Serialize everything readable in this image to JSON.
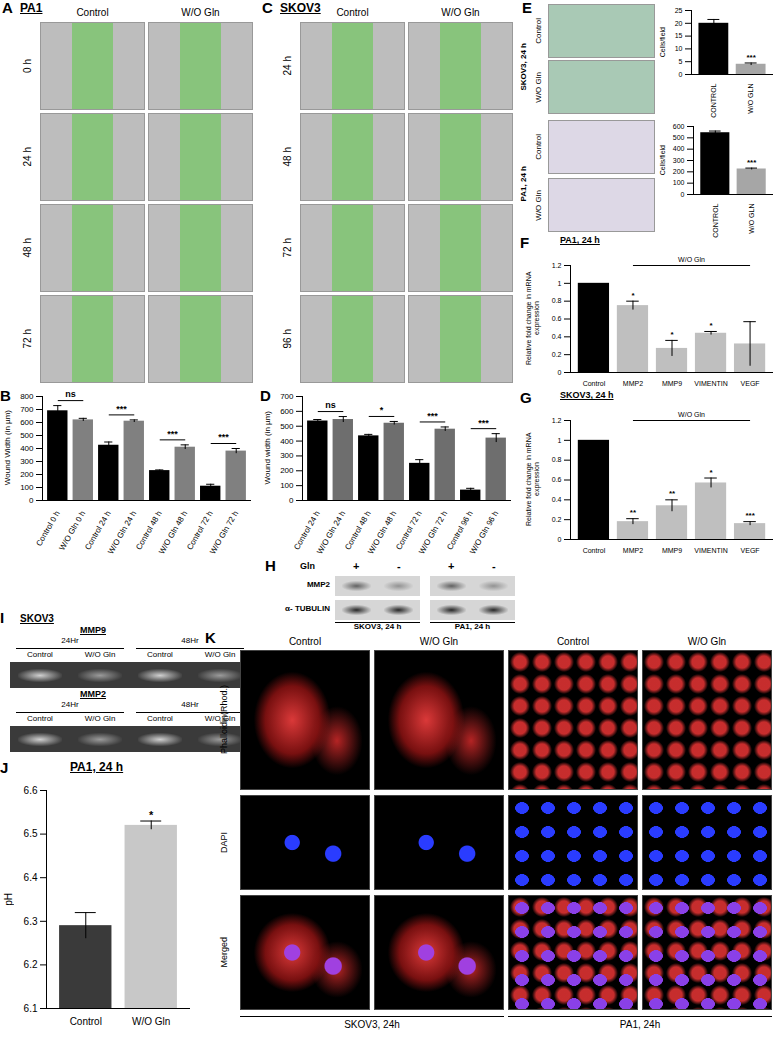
{
  "chart_data": [
    {
      "panel": "B",
      "type": "bar",
      "ylabel": "Wound Width (in µm)",
      "categories": [
        "Control 0 h",
        "W/O Gln 0 h",
        "Control 24 h",
        "W/O Gln 24 h",
        "Control 48 h",
        "W/O Gln 48 h",
        "Control 72 h",
        "W/O Gln 72 h"
      ],
      "values": [
        690,
        620,
        425,
        610,
        230,
        410,
        110,
        380
      ],
      "errors": [
        40,
        12,
        25,
        10,
        5,
        18,
        15,
        20
      ],
      "colors": [
        "#000000",
        "#808080",
        "#000000",
        "#808080",
        "#000000",
        "#808080",
        "#000000",
        "#808080"
      ],
      "ylim": [
        0,
        800
      ],
      "yticks": [
        0,
        100,
        200,
        300,
        400,
        500,
        600,
        700,
        800
      ],
      "annotations": [
        {
          "text": "ns",
          "categories": [
            "Control 0 h",
            "W/O Gln 0 h"
          ]
        },
        {
          "text": "***",
          "categories": [
            "Control 24 h",
            "W/O Gln 24 h"
          ]
        },
        {
          "text": "***",
          "categories": [
            "Control 48 h",
            "W/O Gln 48 h"
          ]
        },
        {
          "text": "***",
          "categories": [
            "Control 72 h",
            "W/O Gln 72 h"
          ]
        }
      ]
    },
    {
      "panel": "D",
      "type": "bar",
      "ylabel": "Wound width (in µm)",
      "categories": [
        "Control 24 h",
        "W/O Gln 24 h",
        "Control 48 h",
        "W/O Gln 48 h",
        "Control 72 h",
        "W/O Gln 72 h",
        "Control 96 h",
        "W/O Gln 96 h"
      ],
      "values": [
        535,
        545,
        435,
        520,
        250,
        480,
        70,
        420
      ],
      "errors": [
        10,
        20,
        10,
        12,
        25,
        15,
        12,
        30
      ],
      "colors": [
        "#000000",
        "#6e6e6e",
        "#000000",
        "#6e6e6e",
        "#000000",
        "#6e6e6e",
        "#000000",
        "#6e6e6e"
      ],
      "ylim": [
        0,
        700
      ],
      "yticks": [
        0,
        100,
        200,
        300,
        400,
        500,
        600,
        700
      ],
      "annotations": [
        {
          "text": "ns",
          "categories": [
            "Control 24 h",
            "W/O Gln 24 h"
          ]
        },
        {
          "text": "*",
          "categories": [
            "Control 48 h",
            "W/O Gln 48 h"
          ]
        },
        {
          "text": "***",
          "categories": [
            "Control 72 h",
            "W/O Gln 72 h"
          ]
        },
        {
          "text": "***",
          "categories": [
            "Control 96 h",
            "W/O Gln 96 h"
          ]
        }
      ]
    },
    {
      "type": "bar",
      "ylabel": "Cells/field",
      "categories": [
        "CONTROL",
        "W/O GLN"
      ],
      "values": [
        20,
        4
      ],
      "errors": [
        1.5,
        0.5
      ],
      "colors": [
        "#000000",
        "#a6a6a6"
      ],
      "ylim": [
        0,
        25
      ],
      "yticks": [
        0,
        5,
        10,
        15,
        20,
        25
      ],
      "annotations": [
        {
          "text": "***",
          "categories": [
            "W/O GLN"
          ]
        }
      ]
    },
    {
      "type": "bar",
      "ylabel": "Cells/field",
      "categories": [
        "CONTROL",
        "W/O GLN"
      ],
      "values": [
        545,
        225
      ],
      "errors": [
        15,
        8
      ],
      "colors": [
        "#000000",
        "#a6a6a6"
      ],
      "ylim": [
        0,
        600
      ],
      "yticks": [
        0,
        100,
        200,
        300,
        400,
        500,
        600
      ],
      "annotations": [
        {
          "text": "***",
          "categories": [
            "W/O GLN"
          ]
        }
      ]
    },
    {
      "panel": "F",
      "type": "bar",
      "title": "PA1, 24 h",
      "subtitle": "W/O Gln",
      "ylabel": "Relative fold change in mRNA expression",
      "categories": [
        "Control",
        "MMP2",
        "MMP9",
        "VIMENTIN",
        "VEGF"
      ],
      "values": [
        1,
        0.75,
        0.27,
        0.44,
        0.32
      ],
      "errors": [
        0,
        0.05,
        0.09,
        0.02,
        0.25
      ],
      "colors": [
        "#000000",
        "#bfbfbf",
        "#bfbfbf",
        "#bfbfbf",
        "#bfbfbf"
      ],
      "ylim": [
        0,
        1.2
      ],
      "yticks": [
        0,
        0.2,
        0.4,
        0.6,
        0.8,
        1,
        1.2
      ],
      "annotations": [
        {
          "text": "*",
          "categories": [
            "MMP2"
          ]
        },
        {
          "text": "*",
          "categories": [
            "MMP9"
          ]
        },
        {
          "text": "*",
          "categories": [
            "VIMENTIN"
          ]
        }
      ]
    },
    {
      "panel": "G",
      "type": "bar",
      "title": "SKOV3, 24 h",
      "subtitle": "W/O Gln",
      "ylabel": "Relative fold change in mRNA expression",
      "categories": [
        "Control",
        "MMP2",
        "MMP9",
        "VIMENTIN",
        "VEGF"
      ],
      "values": [
        1,
        0.18,
        0.34,
        0.57,
        0.16
      ],
      "errors": [
        0,
        0.03,
        0.06,
        0.05,
        0.02
      ],
      "colors": [
        "#000000",
        "#bfbfbf",
        "#bfbfbf",
        "#bfbfbf",
        "#bfbfbf"
      ],
      "ylim": [
        0,
        1.2
      ],
      "yticks": [
        0,
        0.2,
        0.4,
        0.6,
        0.8,
        1,
        1.2
      ],
      "annotations": [
        {
          "text": "**",
          "categories": [
            "MMP2"
          ]
        },
        {
          "text": "**",
          "categories": [
            "MMP9"
          ]
        },
        {
          "text": "*",
          "categories": [
            "VIMENTIN"
          ]
        },
        {
          "text": "***",
          "categories": [
            "VEGF"
          ]
        }
      ]
    },
    {
      "panel": "J",
      "type": "bar",
      "title": "PA1, 24 h",
      "ylabel": "pH",
      "categories": [
        "Control",
        "W/O Gln"
      ],
      "values": [
        6.29,
        6.52
      ],
      "errors": [
        0.03,
        0.01
      ],
      "colors": [
        "#3a3a3a",
        "#c8c8c8"
      ],
      "ylim": [
        6.1,
        6.6
      ],
      "yticks": [
        6.1,
        6.2,
        6.3,
        6.4,
        6.5,
        6.6
      ],
      "annotations": [
        {
          "text": "*",
          "categories": [
            "W/O Gln"
          ]
        }
      ]
    }
  ],
  "image_panels": [
    {
      "panel": "A",
      "title": "PA1",
      "columns": [
        "Control",
        "W/O Gln"
      ],
      "rows": [
        "0 h",
        "24 h",
        "48 h",
        "72 h"
      ]
    },
    {
      "panel": "C",
      "title": "SKOV3",
      "columns": [
        "Control",
        "W/O Gln"
      ],
      "rows": [
        "24 h",
        "48 h",
        "72 h",
        "96 h"
      ]
    },
    {
      "panel": "E",
      "groups": [
        {
          "label": "SKOV3, 24 h",
          "rows": [
            "Control",
            "W/O Gln"
          ]
        },
        {
          "label": "PA1, 24 h",
          "rows": [
            "Control",
            "W/O Gln"
          ]
        }
      ]
    },
    {
      "panel": "H",
      "header": "Gln",
      "lanes": [
        "+",
        "-",
        "+",
        "-"
      ],
      "rows": [
        "MMP2",
        "α- TUBULIN"
      ],
      "groups": [
        "SKOV3, 24 h",
        "PA1, 24 h"
      ]
    },
    {
      "panel": "I",
      "title": "SKOV3",
      "gels": [
        {
          "label": "MMP9",
          "times": [
            "24Hr",
            "48Hr"
          ],
          "lanes": [
            "Control",
            "W/O Gln",
            "Control",
            "W/O Gln"
          ]
        },
        {
          "label": "MMP2",
          "times": [
            "24Hr",
            "48Hr"
          ],
          "lanes": [
            "Control",
            "W/O Gln",
            "Control",
            "W/O Gln"
          ]
        }
      ]
    },
    {
      "panel": "K",
      "columns": [
        "Control",
        "W/O Gln",
        "Control",
        "W/O Gln"
      ],
      "rows": [
        "Phalloidin(Rhod.)",
        "DAPI",
        "Merged"
      ],
      "groups": [
        "SKOV3, 24h",
        "PA1, 24h"
      ]
    }
  ]
}
